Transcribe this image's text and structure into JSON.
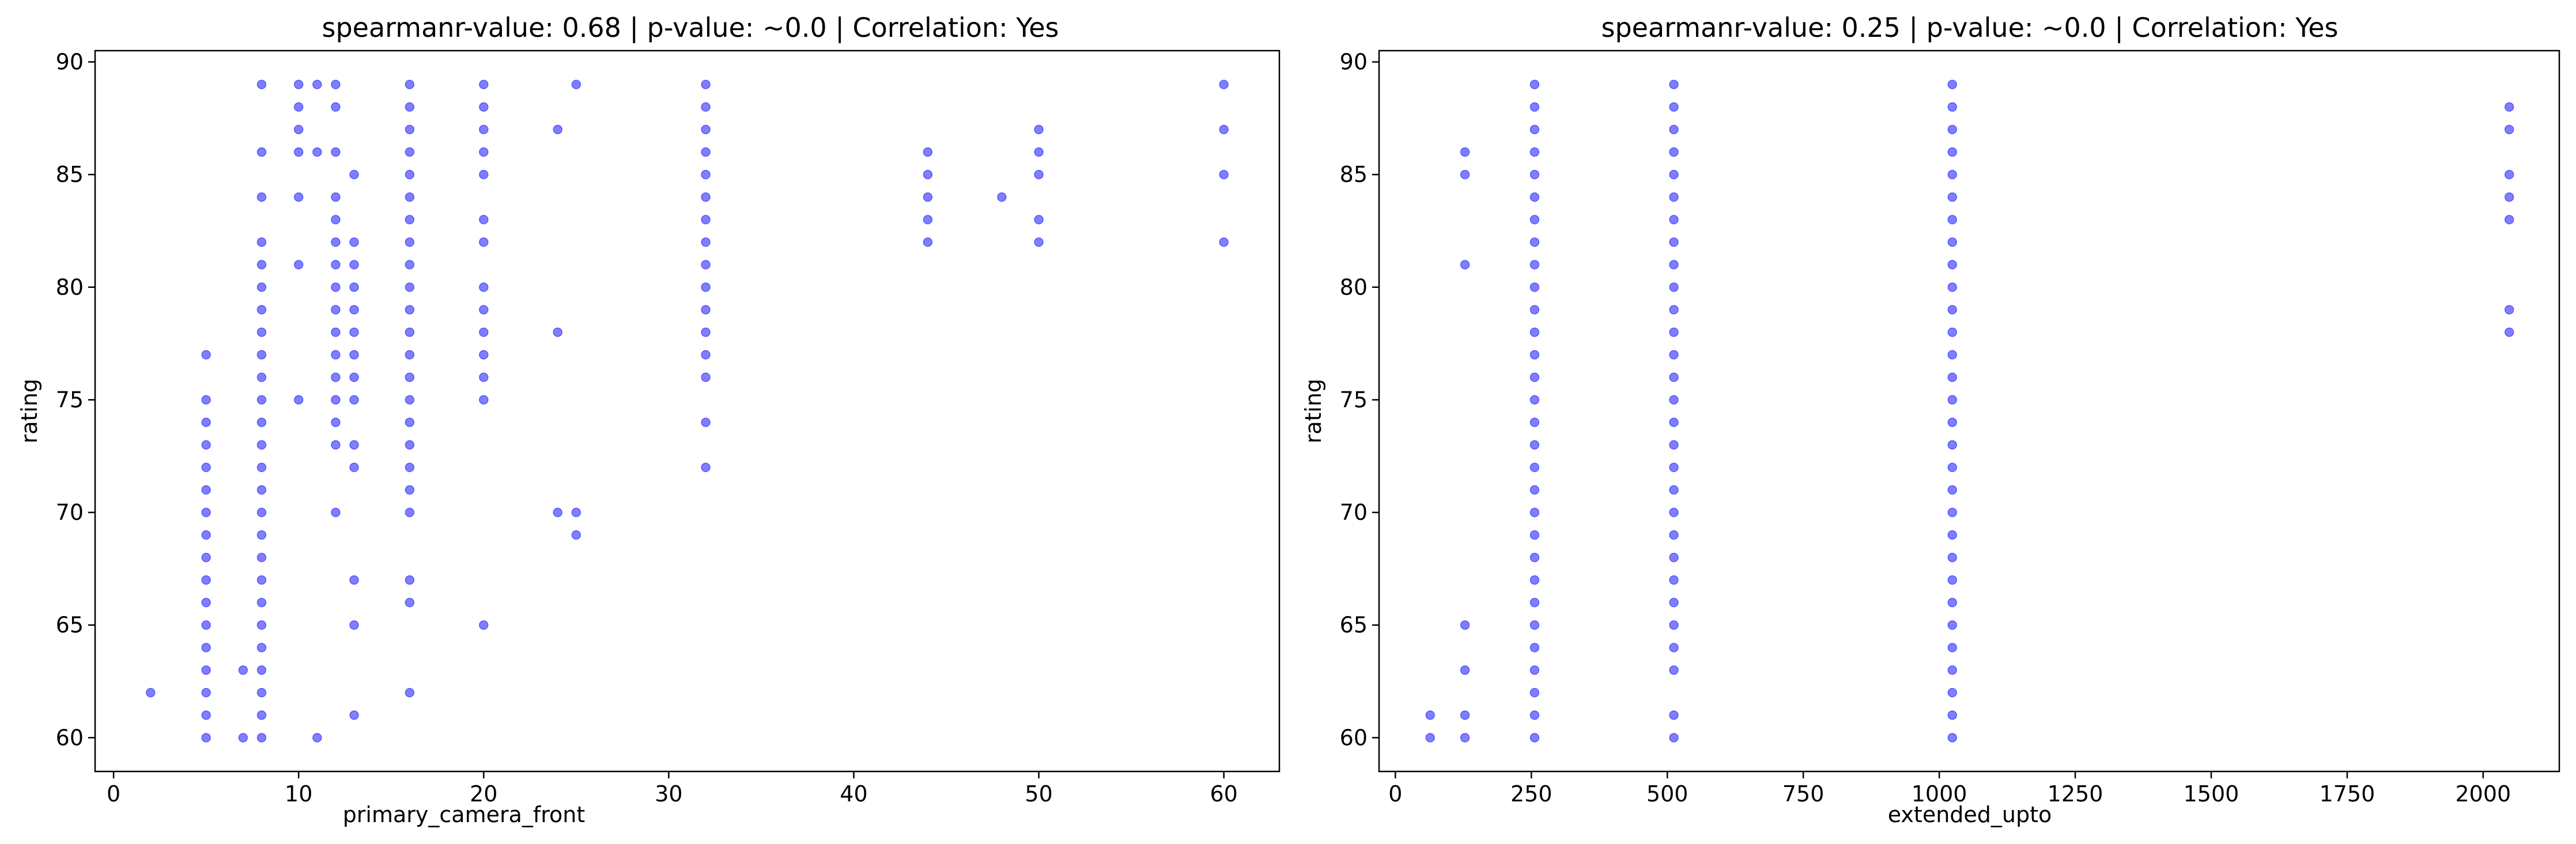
{
  "chart_data": [
    {
      "type": "scatter",
      "title": "spearmanr-value: 0.68 | p-value: ~0.0 | Correlation: Yes",
      "xlabel": "primary_camera_front",
      "ylabel": "rating",
      "xlim": [
        -1,
        63
      ],
      "ylim": [
        58.5,
        90.5
      ],
      "xticks": [
        0,
        10,
        20,
        30,
        40,
        50,
        60
      ],
      "yticks": [
        60,
        65,
        70,
        75,
        80,
        85,
        90
      ],
      "grid": false,
      "marker_color": "#0000ff",
      "points": [
        [
          2,
          62
        ],
        [
          5,
          60
        ],
        [
          5,
          61
        ],
        [
          5,
          62
        ],
        [
          5,
          63
        ],
        [
          5,
          64
        ],
        [
          5,
          65
        ],
        [
          5,
          66
        ],
        [
          5,
          67
        ],
        [
          5,
          68
        ],
        [
          5,
          69
        ],
        [
          5,
          70
        ],
        [
          5,
          71
        ],
        [
          5,
          72
        ],
        [
          5,
          73
        ],
        [
          5,
          74
        ],
        [
          5,
          75
        ],
        [
          5,
          77
        ],
        [
          7,
          60
        ],
        [
          7,
          63
        ],
        [
          8,
          60
        ],
        [
          8,
          61
        ],
        [
          8,
          62
        ],
        [
          8,
          63
        ],
        [
          8,
          64
        ],
        [
          8,
          65
        ],
        [
          8,
          66
        ],
        [
          8,
          67
        ],
        [
          8,
          68
        ],
        [
          8,
          69
        ],
        [
          8,
          70
        ],
        [
          8,
          71
        ],
        [
          8,
          72
        ],
        [
          8,
          73
        ],
        [
          8,
          74
        ],
        [
          8,
          75
        ],
        [
          8,
          76
        ],
        [
          8,
          77
        ],
        [
          8,
          78
        ],
        [
          8,
          79
        ],
        [
          8,
          80
        ],
        [
          8,
          81
        ],
        [
          8,
          82
        ],
        [
          8,
          84
        ],
        [
          8,
          86
        ],
        [
          8,
          89
        ],
        [
          10,
          75
        ],
        [
          10,
          81
        ],
        [
          10,
          84
        ],
        [
          10,
          86
        ],
        [
          10,
          87
        ],
        [
          10,
          88
        ],
        [
          10,
          89
        ],
        [
          11,
          60
        ],
        [
          11,
          86
        ],
        [
          11,
          89
        ],
        [
          12,
          70
        ],
        [
          12,
          73
        ],
        [
          12,
          74
        ],
        [
          12,
          75
        ],
        [
          12,
          76
        ],
        [
          12,
          77
        ],
        [
          12,
          78
        ],
        [
          12,
          79
        ],
        [
          12,
          80
        ],
        [
          12,
          81
        ],
        [
          12,
          82
        ],
        [
          12,
          83
        ],
        [
          12,
          84
        ],
        [
          12,
          86
        ],
        [
          12,
          88
        ],
        [
          12,
          89
        ],
        [
          13,
          61
        ],
        [
          13,
          65
        ],
        [
          13,
          67
        ],
        [
          13,
          72
        ],
        [
          13,
          73
        ],
        [
          13,
          75
        ],
        [
          13,
          76
        ],
        [
          13,
          77
        ],
        [
          13,
          78
        ],
        [
          13,
          79
        ],
        [
          13,
          80
        ],
        [
          13,
          81
        ],
        [
          13,
          82
        ],
        [
          13,
          85
        ],
        [
          16,
          62
        ],
        [
          16,
          66
        ],
        [
          16,
          67
        ],
        [
          16,
          70
        ],
        [
          16,
          71
        ],
        [
          16,
          72
        ],
        [
          16,
          73
        ],
        [
          16,
          74
        ],
        [
          16,
          75
        ],
        [
          16,
          76
        ],
        [
          16,
          77
        ],
        [
          16,
          78
        ],
        [
          16,
          79
        ],
        [
          16,
          80
        ],
        [
          16,
          81
        ],
        [
          16,
          82
        ],
        [
          16,
          83
        ],
        [
          16,
          84
        ],
        [
          16,
          85
        ],
        [
          16,
          86
        ],
        [
          16,
          87
        ],
        [
          16,
          88
        ],
        [
          16,
          89
        ],
        [
          20,
          65
        ],
        [
          20,
          75
        ],
        [
          20,
          76
        ],
        [
          20,
          77
        ],
        [
          20,
          78
        ],
        [
          20,
          79
        ],
        [
          20,
          80
        ],
        [
          20,
          82
        ],
        [
          20,
          83
        ],
        [
          20,
          85
        ],
        [
          20,
          86
        ],
        [
          20,
          87
        ],
        [
          20,
          88
        ],
        [
          20,
          89
        ],
        [
          24,
          70
        ],
        [
          24,
          78
        ],
        [
          24,
          87
        ],
        [
          25,
          69
        ],
        [
          25,
          70
        ],
        [
          25,
          89
        ],
        [
          32,
          72
        ],
        [
          32,
          74
        ],
        [
          32,
          76
        ],
        [
          32,
          77
        ],
        [
          32,
          78
        ],
        [
          32,
          79
        ],
        [
          32,
          80
        ],
        [
          32,
          81
        ],
        [
          32,
          82
        ],
        [
          32,
          83
        ],
        [
          32,
          84
        ],
        [
          32,
          85
        ],
        [
          32,
          86
        ],
        [
          32,
          87
        ],
        [
          32,
          88
        ],
        [
          32,
          89
        ],
        [
          44,
          82
        ],
        [
          44,
          83
        ],
        [
          44,
          84
        ],
        [
          44,
          85
        ],
        [
          44,
          86
        ],
        [
          48,
          84
        ],
        [
          50,
          82
        ],
        [
          50,
          83
        ],
        [
          50,
          85
        ],
        [
          50,
          86
        ],
        [
          50,
          87
        ],
        [
          60,
          82
        ],
        [
          60,
          85
        ],
        [
          60,
          87
        ],
        [
          60,
          89
        ]
      ]
    },
    {
      "type": "scatter",
      "title": "spearmanr-value: 0.25 | p-value: ~0.0 | Correlation: Yes",
      "xlabel": "extended_upto",
      "ylabel": "rating",
      "xlim": [
        -30,
        2140
      ],
      "ylim": [
        58.5,
        90.5
      ],
      "xticks": [
        0,
        250,
        500,
        750,
        1000,
        1250,
        1500,
        1750,
        2000
      ],
      "yticks": [
        60,
        65,
        70,
        75,
        80,
        85,
        90
      ],
      "grid": false,
      "marker_color": "#0000ff",
      "points": [
        [
          64,
          60
        ],
        [
          64,
          61
        ],
        [
          128,
          60
        ],
        [
          128,
          61
        ],
        [
          128,
          63
        ],
        [
          128,
          65
        ],
        [
          128,
          81
        ],
        [
          128,
          85
        ],
        [
          128,
          86
        ],
        [
          256,
          60
        ],
        [
          256,
          61
        ],
        [
          256,
          62
        ],
        [
          256,
          63
        ],
        [
          256,
          64
        ],
        [
          256,
          65
        ],
        [
          256,
          66
        ],
        [
          256,
          67
        ],
        [
          256,
          68
        ],
        [
          256,
          69
        ],
        [
          256,
          70
        ],
        [
          256,
          71
        ],
        [
          256,
          72
        ],
        [
          256,
          73
        ],
        [
          256,
          74
        ],
        [
          256,
          75
        ],
        [
          256,
          76
        ],
        [
          256,
          77
        ],
        [
          256,
          78
        ],
        [
          256,
          79
        ],
        [
          256,
          80
        ],
        [
          256,
          81
        ],
        [
          256,
          82
        ],
        [
          256,
          83
        ],
        [
          256,
          84
        ],
        [
          256,
          85
        ],
        [
          256,
          86
        ],
        [
          256,
          87
        ],
        [
          256,
          88
        ],
        [
          256,
          89
        ],
        [
          512,
          60
        ],
        [
          512,
          61
        ],
        [
          512,
          63
        ],
        [
          512,
          64
        ],
        [
          512,
          65
        ],
        [
          512,
          66
        ],
        [
          512,
          67
        ],
        [
          512,
          68
        ],
        [
          512,
          69
        ],
        [
          512,
          70
        ],
        [
          512,
          71
        ],
        [
          512,
          72
        ],
        [
          512,
          73
        ],
        [
          512,
          74
        ],
        [
          512,
          75
        ],
        [
          512,
          76
        ],
        [
          512,
          77
        ],
        [
          512,
          78
        ],
        [
          512,
          79
        ],
        [
          512,
          80
        ],
        [
          512,
          81
        ],
        [
          512,
          82
        ],
        [
          512,
          83
        ],
        [
          512,
          84
        ],
        [
          512,
          85
        ],
        [
          512,
          86
        ],
        [
          512,
          87
        ],
        [
          512,
          88
        ],
        [
          512,
          89
        ],
        [
          1024,
          60
        ],
        [
          1024,
          61
        ],
        [
          1024,
          62
        ],
        [
          1024,
          63
        ],
        [
          1024,
          64
        ],
        [
          1024,
          65
        ],
        [
          1024,
          66
        ],
        [
          1024,
          67
        ],
        [
          1024,
          68
        ],
        [
          1024,
          69
        ],
        [
          1024,
          70
        ],
        [
          1024,
          71
        ],
        [
          1024,
          72
        ],
        [
          1024,
          73
        ],
        [
          1024,
          74
        ],
        [
          1024,
          75
        ],
        [
          1024,
          76
        ],
        [
          1024,
          77
        ],
        [
          1024,
          78
        ],
        [
          1024,
          79
        ],
        [
          1024,
          80
        ],
        [
          1024,
          81
        ],
        [
          1024,
          82
        ],
        [
          1024,
          83
        ],
        [
          1024,
          84
        ],
        [
          1024,
          85
        ],
        [
          1024,
          86
        ],
        [
          1024,
          87
        ],
        [
          1024,
          88
        ],
        [
          1024,
          89
        ],
        [
          2048,
          78
        ],
        [
          2048,
          79
        ],
        [
          2048,
          83
        ],
        [
          2048,
          84
        ],
        [
          2048,
          85
        ],
        [
          2048,
          87
        ],
        [
          2048,
          88
        ]
      ]
    }
  ]
}
